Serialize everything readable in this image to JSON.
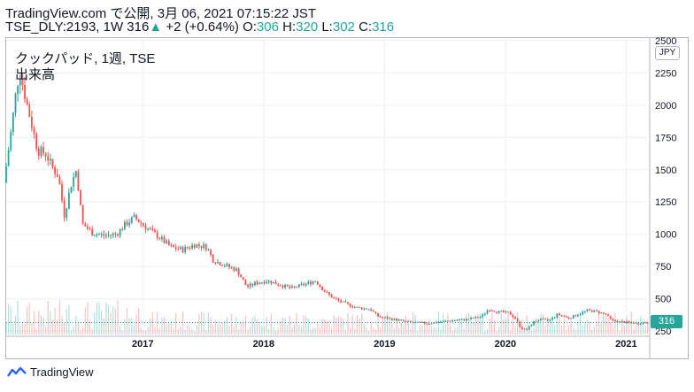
{
  "header": {
    "line1": "TradingView.com で公開, 3月 06, 2021 07:15:22 JST",
    "symbol_prefix": "TSE_DLY:2193, 1W 316",
    "change_arrow": "▲",
    "change_text": "+2 (+0.64%)",
    "o_label": "O:",
    "o_value": "306",
    "h_label": "H:",
    "h_value": "320",
    "l_label": "L:",
    "l_value": "302",
    "c_label": "C:",
    "c_value": "316"
  },
  "legend": {
    "title": "クックパッド, 1週, TSE",
    "volume": "出来高"
  },
  "currency": "JPY",
  "price_tag": "316",
  "footer": {
    "brand": "TradingView"
  },
  "colors": {
    "up": "#26a69a",
    "down": "#ef5350",
    "grid": "#eef0f3",
    "frame": "#b2b5be",
    "text": "#131722"
  },
  "chart_data": {
    "type": "line",
    "style": "candlestick",
    "y_ticks": [
      250,
      500,
      750,
      1000,
      1250,
      1500,
      1750,
      2000,
      2250,
      2500
    ],
    "x_ticks": [
      "2017",
      "2018",
      "2019",
      "2020",
      "2021"
    ],
    "x_tick_values": [
      2017.0,
      2018.0,
      2019.0,
      2020.0,
      2021.0
    ],
    "x_range": [
      2015.87,
      2021.18
    ],
    "y_range": [
      230,
      2520
    ],
    "last_close": 316,
    "price_path": [
      {
        "t": 2015.87,
        "v": 1400
      },
      {
        "t": 2015.93,
        "v": 1800
      },
      {
        "t": 2015.97,
        "v": 2100
      },
      {
        "t": 2016.0,
        "v": 2270
      },
      {
        "t": 2016.05,
        "v": 2050
      },
      {
        "t": 2016.1,
        "v": 1850
      },
      {
        "t": 2016.15,
        "v": 1650
      },
      {
        "t": 2016.22,
        "v": 1620
      },
      {
        "t": 2016.27,
        "v": 1520
      },
      {
        "t": 2016.32,
        "v": 1450
      },
      {
        "t": 2016.37,
        "v": 1150
      },
      {
        "t": 2016.43,
        "v": 1400
      },
      {
        "t": 2016.47,
        "v": 1500
      },
      {
        "t": 2016.52,
        "v": 1080
      },
      {
        "t": 2016.6,
        "v": 1010
      },
      {
        "t": 2016.7,
        "v": 990
      },
      {
        "t": 2016.8,
        "v": 1000
      },
      {
        "t": 2016.88,
        "v": 1080
      },
      {
        "t": 2016.95,
        "v": 1130
      },
      {
        "t": 2017.05,
        "v": 1050
      },
      {
        "t": 2017.15,
        "v": 980
      },
      {
        "t": 2017.25,
        "v": 900
      },
      {
        "t": 2017.35,
        "v": 880
      },
      {
        "t": 2017.45,
        "v": 920
      },
      {
        "t": 2017.55,
        "v": 900
      },
      {
        "t": 2017.6,
        "v": 800
      },
      {
        "t": 2017.7,
        "v": 760
      },
      {
        "t": 2017.8,
        "v": 720
      },
      {
        "t": 2017.88,
        "v": 590
      },
      {
        "t": 2017.95,
        "v": 620
      },
      {
        "t": 2018.05,
        "v": 640
      },
      {
        "t": 2018.15,
        "v": 610
      },
      {
        "t": 2018.25,
        "v": 580
      },
      {
        "t": 2018.35,
        "v": 610
      },
      {
        "t": 2018.45,
        "v": 640
      },
      {
        "t": 2018.52,
        "v": 560
      },
      {
        "t": 2018.6,
        "v": 500
      },
      {
        "t": 2018.7,
        "v": 460
      },
      {
        "t": 2018.8,
        "v": 430
      },
      {
        "t": 2018.9,
        "v": 420
      },
      {
        "t": 2018.97,
        "v": 360
      },
      {
        "t": 2019.1,
        "v": 340
      },
      {
        "t": 2019.25,
        "v": 315
      },
      {
        "t": 2019.4,
        "v": 310
      },
      {
        "t": 2019.55,
        "v": 330
      },
      {
        "t": 2019.7,
        "v": 340
      },
      {
        "t": 2019.82,
        "v": 360
      },
      {
        "t": 2019.88,
        "v": 420
      },
      {
        "t": 2019.95,
        "v": 400
      },
      {
        "t": 2020.05,
        "v": 390
      },
      {
        "t": 2020.1,
        "v": 350
      },
      {
        "t": 2020.15,
        "v": 270
      },
      {
        "t": 2020.2,
        "v": 260
      },
      {
        "t": 2020.25,
        "v": 320
      },
      {
        "t": 2020.3,
        "v": 340
      },
      {
        "t": 2020.38,
        "v": 330
      },
      {
        "t": 2020.45,
        "v": 380
      },
      {
        "t": 2020.55,
        "v": 350
      },
      {
        "t": 2020.62,
        "v": 380
      },
      {
        "t": 2020.7,
        "v": 410
      },
      {
        "t": 2020.78,
        "v": 400
      },
      {
        "t": 2020.85,
        "v": 380
      },
      {
        "t": 2020.9,
        "v": 330
      },
      {
        "t": 2020.98,
        "v": 320
      },
      {
        "t": 2021.05,
        "v": 315
      },
      {
        "t": 2021.12,
        "v": 310
      },
      {
        "t": 2021.18,
        "v": 316
      }
    ],
    "grid": true,
    "y_axis_side": "right",
    "volume_pane": true
  }
}
